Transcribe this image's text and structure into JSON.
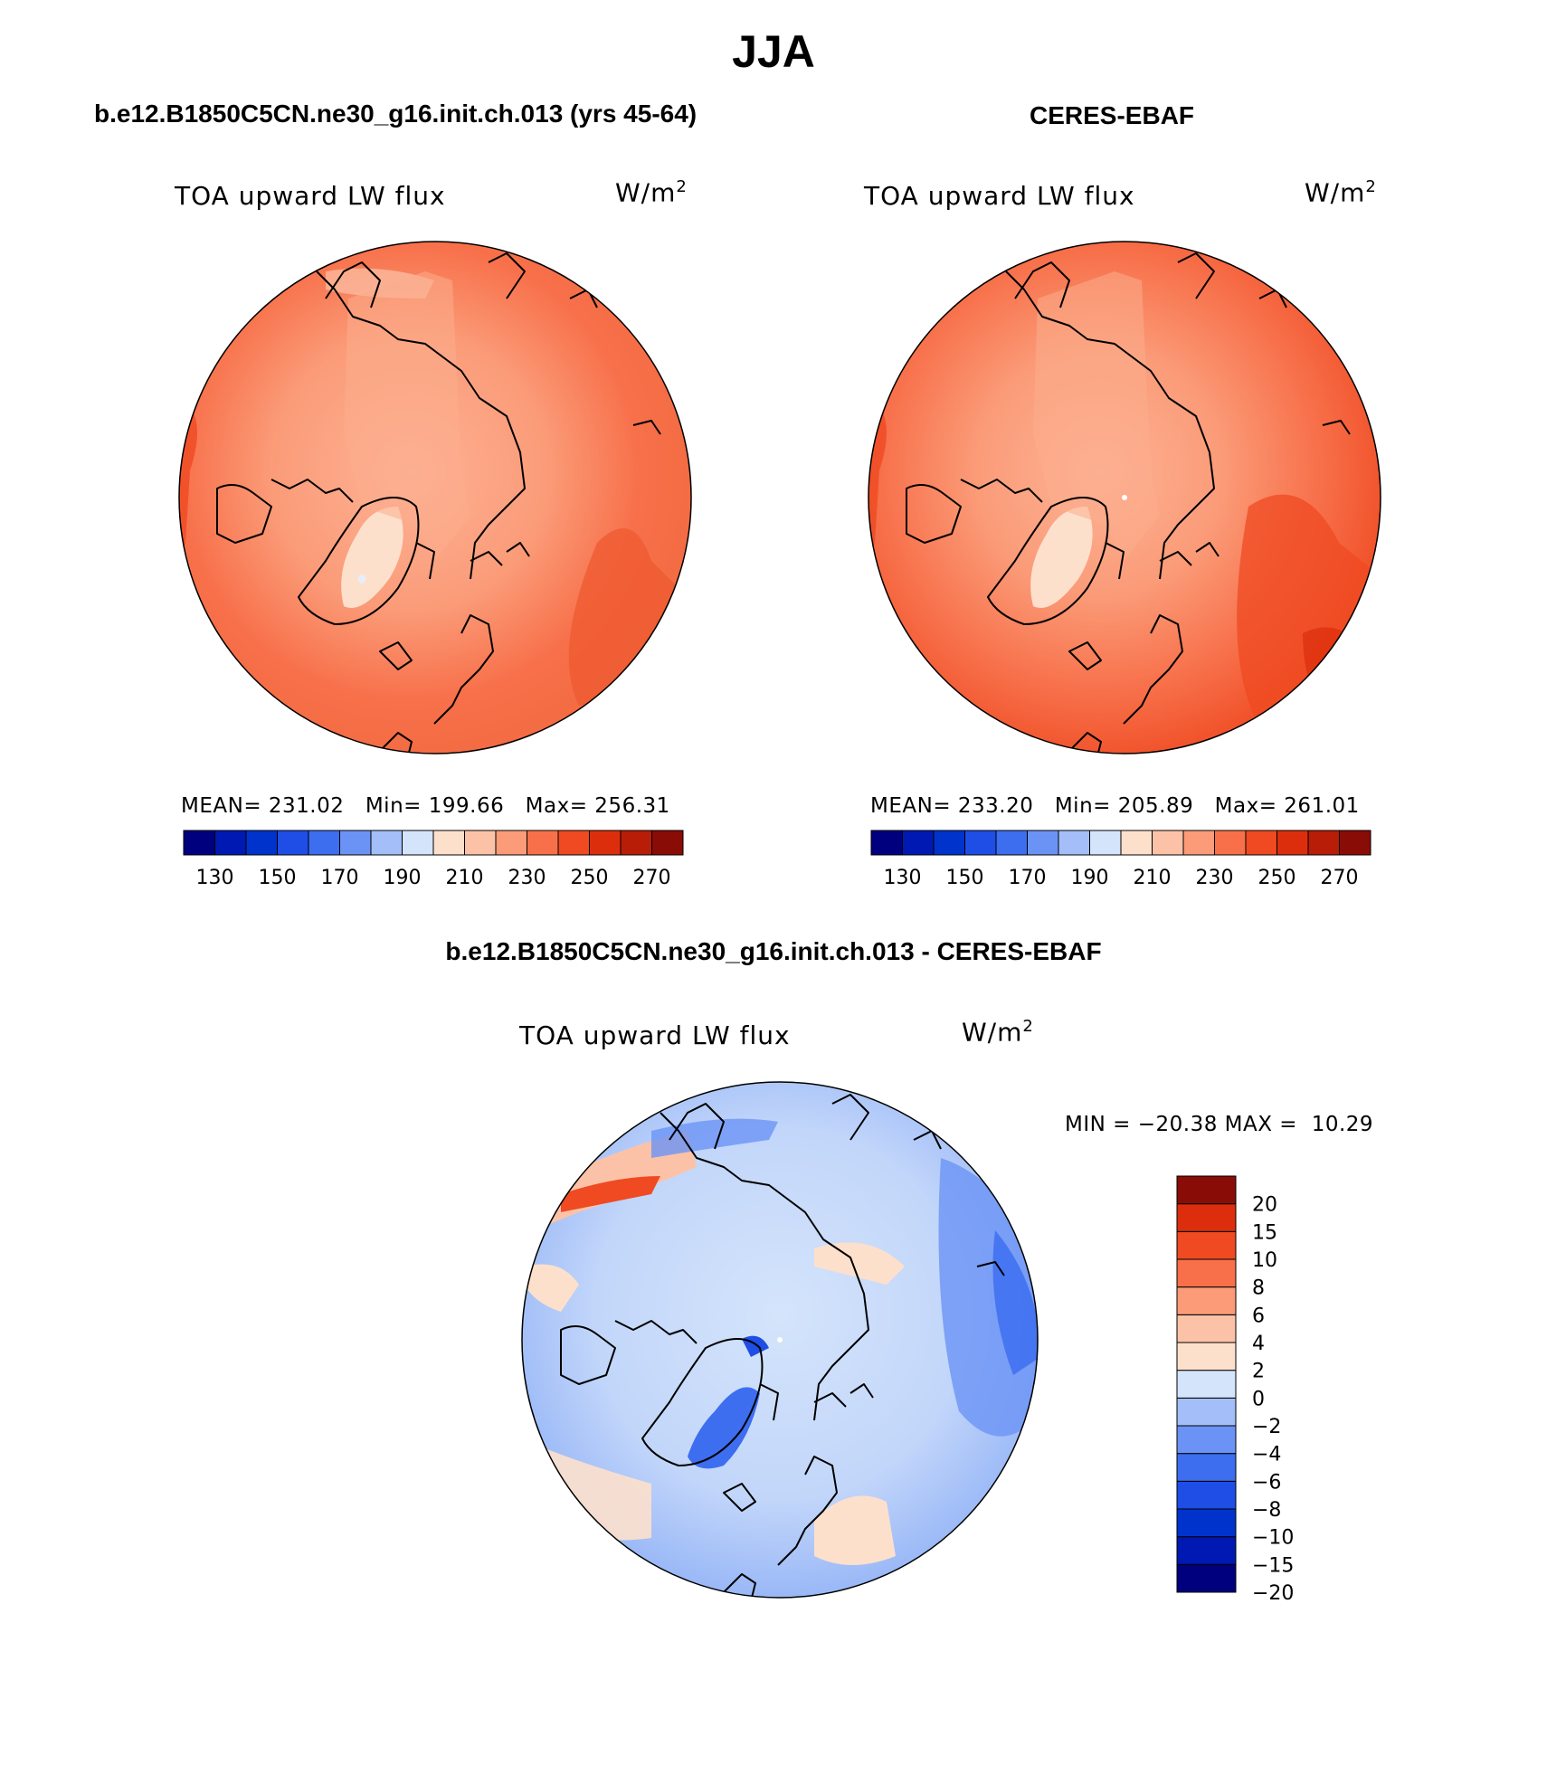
{
  "title": "JJA",
  "panels": [
    {
      "header": "b.e12.B1850C5CN.ne30_g16.init.ch.013 (yrs 45-64)",
      "variable": "TOA upward LW flux",
      "units_base": "W/m",
      "units_exp": "2",
      "mean_label": "MEAN=",
      "mean": "231.02",
      "min_label": "Min=",
      "min": "199.66",
      "max_label": "Max=",
      "max": "256.31"
    },
    {
      "header": "CERES-EBAF",
      "variable": "TOA upward LW flux",
      "units_base": "W/m",
      "units_exp": "2",
      "mean_label": "MEAN=",
      "mean": "233.20",
      "min_label": "Min=",
      "min": "205.89",
      "max_label": "Max=",
      "max": "261.01"
    }
  ],
  "diff_panel": {
    "header": "b.e12.B1850C5CN.ne30_g16.init.ch.013 - CERES-EBAF",
    "variable": "TOA upward LW flux",
    "units_base": "W/m",
    "units_exp": "2",
    "minmax": "MIN = −20.38 MAX =  10.29"
  },
  "colorbar_main": {
    "colors": [
      "#00007f",
      "#0019b2",
      "#0033cc",
      "#1e4ee6",
      "#3d6ef0",
      "#6b93f5",
      "#a3bef8",
      "#d4e4fb",
      "#fde0cc",
      "#fcc2a8",
      "#fb9b78",
      "#f7704a",
      "#ef4a22",
      "#dc2e0d",
      "#b81d08",
      "#8a0c06"
    ],
    "labels": [
      "130",
      "150",
      "170",
      "190",
      "210",
      "230",
      "250",
      "270"
    ]
  },
  "colorbar_diff": {
    "colors": [
      "#00007f",
      "#0019b2",
      "#0033cc",
      "#1e4ee6",
      "#3d6ef0",
      "#6b93f5",
      "#a3bef8",
      "#d4e4fb",
      "#fde0cc",
      "#fcc2a8",
      "#fb9b78",
      "#f7704a",
      "#ef4a22",
      "#dc2e0d",
      "#8a0c06"
    ],
    "labels": [
      "20",
      "15",
      "10",
      "8",
      "6",
      "4",
      "2",
      "0",
      "−2",
      "−4",
      "−6",
      "−8",
      "−10",
      "−15",
      "−20"
    ]
  }
}
